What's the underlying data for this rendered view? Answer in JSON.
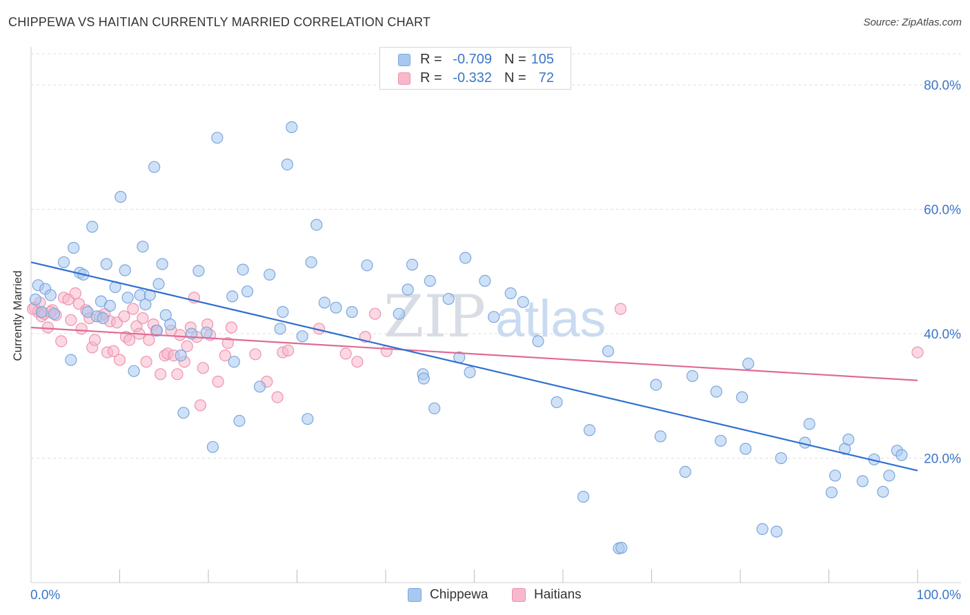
{
  "title": "CHIPPEWA VS HAITIAN CURRENTLY MARRIED CORRELATION CHART",
  "source": "Source: ZipAtlas.com",
  "watermark": {
    "zip": "ZIP",
    "atlas": "atlas"
  },
  "colors": {
    "chippewa_fill": "#a8c8f0",
    "chippewa_stroke": "#7aa6dc",
    "chippewa_line": "#2f6fd0",
    "haitians_fill": "#f7b8cb",
    "haitians_stroke": "#ec93af",
    "haitians_line": "#e06a94",
    "tick_label": "#3b75c9",
    "grid": "#dddddd"
  },
  "legend": {
    "chippewa": {
      "r_label": "R =",
      "r_value": "-0.709",
      "n_label": "N =",
      "n_value": "105"
    },
    "haitians": {
      "r_label": "R =",
      "r_value": "-0.332",
      "n_label": "N =",
      "n_value": "72"
    }
  },
  "chart_data": {
    "type": "scatter",
    "title": "CHIPPEWA VS HAITIAN CURRENTLY MARRIED CORRELATION CHART",
    "xlabel": "",
    "ylabel": "Currently Married",
    "xlim": [
      0,
      100
    ],
    "ylim": [
      0,
      85
    ],
    "x_tick_labels": [
      {
        "value": 0,
        "label": "0.0%"
      },
      {
        "value": 100,
        "label": "100.0%"
      }
    ],
    "y_tick_labels": [
      {
        "value": 20,
        "label": "20.0%"
      },
      {
        "value": 40,
        "label": "40.0%"
      },
      {
        "value": 60,
        "label": "60.0%"
      },
      {
        "value": 80,
        "label": "80.0%"
      }
    ],
    "grid": true,
    "legend_position": "bottom-center",
    "series": [
      {
        "name": "Chippewa",
        "r": -0.709,
        "n": 105,
        "trendline": {
          "x": [
            0,
            100
          ],
          "y": [
            51.5,
            18.0
          ]
        },
        "points": [
          [
            0.5,
            45.5
          ],
          [
            0.8,
            47.8
          ],
          [
            1.2,
            43.5
          ],
          [
            1.6,
            47.2
          ],
          [
            2.2,
            46.2
          ],
          [
            2.6,
            43.2
          ],
          [
            3.7,
            51.5
          ],
          [
            4.5,
            35.8
          ],
          [
            4.8,
            53.8
          ],
          [
            5.5,
            49.8
          ],
          [
            5.9,
            49.5
          ],
          [
            6.4,
            43.5
          ],
          [
            6.9,
            57.2
          ],
          [
            7.4,
            42.8
          ],
          [
            7.9,
            45.2
          ],
          [
            8.5,
            51.2
          ],
          [
            8.9,
            44.5
          ],
          [
            9.5,
            47.5
          ],
          [
            10.1,
            62.0
          ],
          [
            10.6,
            50.2
          ],
          [
            10.9,
            45.8
          ],
          [
            11.6,
            34.0
          ],
          [
            12.3,
            46.2
          ],
          [
            12.6,
            54.0
          ],
          [
            12.9,
            44.7
          ],
          [
            13.4,
            46.2
          ],
          [
            13.9,
            66.8
          ],
          [
            14.4,
            48.0
          ],
          [
            14.8,
            51.2
          ],
          [
            15.2,
            43.0
          ],
          [
            15.7,
            41.5
          ],
          [
            16.9,
            36.5
          ],
          [
            17.2,
            27.3
          ],
          [
            18.1,
            40.0
          ],
          [
            18.9,
            50.1
          ],
          [
            19.8,
            40.2
          ],
          [
            20.5,
            21.8
          ],
          [
            21.0,
            71.5
          ],
          [
            22.7,
            46.0
          ],
          [
            22.9,
            35.5
          ],
          [
            23.5,
            26.0
          ],
          [
            23.9,
            50.3
          ],
          [
            24.4,
            46.8
          ],
          [
            25.8,
            31.5
          ],
          [
            26.9,
            49.5
          ],
          [
            28.1,
            40.8
          ],
          [
            28.4,
            43.5
          ],
          [
            28.9,
            67.2
          ],
          [
            29.4,
            73.2
          ],
          [
            30.6,
            39.6
          ],
          [
            31.2,
            26.3
          ],
          [
            31.6,
            51.5
          ],
          [
            32.2,
            57.5
          ],
          [
            33.1,
            45.0
          ],
          [
            34.4,
            44.2
          ],
          [
            36.2,
            43.5
          ],
          [
            37.9,
            51.0
          ],
          [
            41.5,
            43.2
          ],
          [
            42.5,
            47.1
          ],
          [
            43.0,
            51.1
          ],
          [
            44.2,
            33.5
          ],
          [
            44.3,
            32.8
          ],
          [
            45.0,
            48.5
          ],
          [
            45.5,
            28.0
          ],
          [
            47.1,
            45.6
          ],
          [
            48.3,
            36.2
          ],
          [
            49.0,
            52.2
          ],
          [
            49.5,
            33.8
          ],
          [
            51.2,
            48.5
          ],
          [
            52.2,
            42.7
          ],
          [
            54.1,
            46.5
          ],
          [
            55.5,
            45.1
          ],
          [
            57.2,
            38.8
          ],
          [
            59.3,
            29.0
          ],
          [
            62.3,
            13.8
          ],
          [
            63.0,
            24.5
          ],
          [
            65.1,
            37.2
          ],
          [
            66.3,
            5.5
          ],
          [
            66.6,
            5.6
          ],
          [
            70.5,
            31.8
          ],
          [
            71.0,
            23.5
          ],
          [
            73.8,
            17.8
          ],
          [
            74.6,
            33.2
          ],
          [
            77.3,
            30.7
          ],
          [
            77.8,
            22.8
          ],
          [
            80.2,
            29.8
          ],
          [
            80.6,
            21.5
          ],
          [
            80.9,
            35.2
          ],
          [
            82.5,
            8.6
          ],
          [
            84.1,
            8.2
          ],
          [
            84.6,
            20.0
          ],
          [
            87.3,
            22.5
          ],
          [
            87.8,
            25.5
          ],
          [
            90.3,
            14.5
          ],
          [
            90.7,
            17.2
          ],
          [
            91.8,
            21.5
          ],
          [
            92.2,
            23.0
          ],
          [
            93.8,
            16.3
          ],
          [
            95.1,
            19.8
          ],
          [
            96.1,
            14.6
          ],
          [
            96.8,
            17.2
          ],
          [
            97.7,
            21.2
          ],
          [
            98.2,
            20.5
          ],
          [
            14.2,
            40.5
          ],
          [
            8.1,
            42.5
          ]
        ]
      },
      {
        "name": "Haitians",
        "r": -0.332,
        "n": 72,
        "trendline": {
          "x": [
            0,
            100
          ],
          "y": [
            41.0,
            32.5
          ]
        },
        "points": [
          [
            0.4,
            44.2
          ],
          [
            0.8,
            43.5
          ],
          [
            1.2,
            42.8
          ],
          [
            1.5,
            43.2
          ],
          [
            1.9,
            41.0
          ],
          [
            2.4,
            43.8
          ],
          [
            2.8,
            43.0
          ],
          [
            3.4,
            38.8
          ],
          [
            3.7,
            45.8
          ],
          [
            4.2,
            45.5
          ],
          [
            4.5,
            42.2
          ],
          [
            5.0,
            46.5
          ],
          [
            5.4,
            44.8
          ],
          [
            5.7,
            40.8
          ],
          [
            6.2,
            43.8
          ],
          [
            6.6,
            42.5
          ],
          [
            6.9,
            37.8
          ],
          [
            7.2,
            39.0
          ],
          [
            7.8,
            42.8
          ],
          [
            8.3,
            43.2
          ],
          [
            8.6,
            37.0
          ],
          [
            8.9,
            42.0
          ],
          [
            9.3,
            37.2
          ],
          [
            9.7,
            41.8
          ],
          [
            10.0,
            35.8
          ],
          [
            10.5,
            42.8
          ],
          [
            10.7,
            39.5
          ],
          [
            11.1,
            39.0
          ],
          [
            11.5,
            44.0
          ],
          [
            11.9,
            41.2
          ],
          [
            12.2,
            40.0
          ],
          [
            12.6,
            42.5
          ],
          [
            13.0,
            35.5
          ],
          [
            13.3,
            39.0
          ],
          [
            13.8,
            41.5
          ],
          [
            14.1,
            40.5
          ],
          [
            14.6,
            33.5
          ],
          [
            15.1,
            36.5
          ],
          [
            15.4,
            36.8
          ],
          [
            15.8,
            40.5
          ],
          [
            16.1,
            36.5
          ],
          [
            16.5,
            33.5
          ],
          [
            16.8,
            39.8
          ],
          [
            17.3,
            35.5
          ],
          [
            17.6,
            38.0
          ],
          [
            18.0,
            41.0
          ],
          [
            18.4,
            45.8
          ],
          [
            18.7,
            39.5
          ],
          [
            19.1,
            28.5
          ],
          [
            19.4,
            34.5
          ],
          [
            19.9,
            41.5
          ],
          [
            20.2,
            39.8
          ],
          [
            21.1,
            32.3
          ],
          [
            21.9,
            36.5
          ],
          [
            22.2,
            38.5
          ],
          [
            22.6,
            41.0
          ],
          [
            25.3,
            36.7
          ],
          [
            26.6,
            32.3
          ],
          [
            27.8,
            29.8
          ],
          [
            28.4,
            37.0
          ],
          [
            29.0,
            37.3
          ],
          [
            32.5,
            40.8
          ],
          [
            35.5,
            36.8
          ],
          [
            36.8,
            35.5
          ],
          [
            37.7,
            39.5
          ],
          [
            38.8,
            43.2
          ],
          [
            40.1,
            37.2
          ],
          [
            66.5,
            44.0
          ],
          [
            100.0,
            37.0
          ],
          [
            0.2,
            44.0
          ],
          [
            1.0,
            45.0
          ],
          [
            2.2,
            43.5
          ]
        ]
      }
    ]
  }
}
